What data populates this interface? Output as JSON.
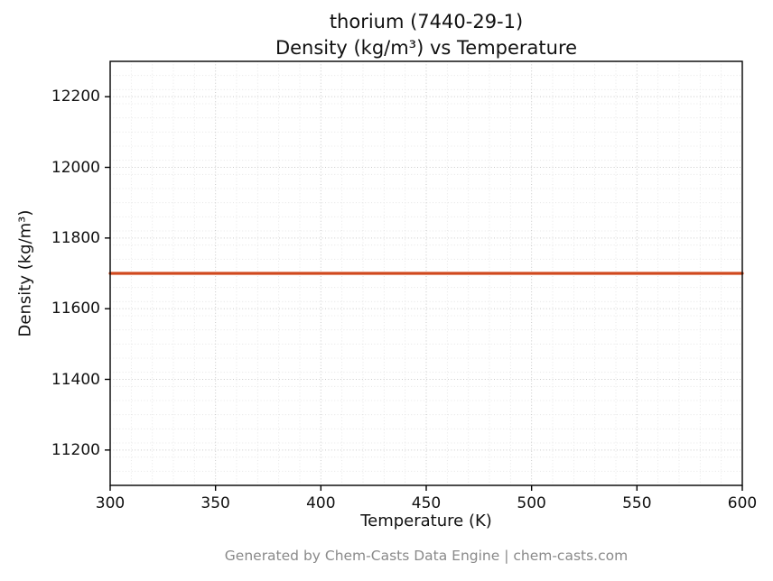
{
  "title_line1": "thorium (7440-29-1)",
  "title_line2": "Density (kg/m³) vs Temperature",
  "footer": "Generated by Chem-Casts Data Engine | chem-casts.com",
  "chart_data": {
    "type": "line",
    "title": "thorium (7440-29-1) — Density (kg/m³) vs Temperature",
    "xlabel": "Temperature (K)",
    "ylabel": "Density (kg/m³)",
    "xlim": [
      300,
      600
    ],
    "ylim": [
      11100,
      12300
    ],
    "x_ticks": [
      300,
      350,
      400,
      450,
      500,
      550,
      600
    ],
    "y_ticks": [
      11200,
      11400,
      11600,
      11800,
      12000,
      12200
    ],
    "x_minor_step": 10,
    "y_minor_step": 40,
    "grid": true,
    "legend": "none",
    "series": [
      {
        "name": "density",
        "color": "#d0491e",
        "x": [
          300,
          600
        ],
        "y": [
          11700,
          11700
        ]
      }
    ]
  },
  "colors": {
    "grid_major": "#c9c9c9",
    "grid_minor": "#e2e2e2",
    "axis": "#000000",
    "text": "#111111",
    "footer_text": "#8a8a8a"
  }
}
